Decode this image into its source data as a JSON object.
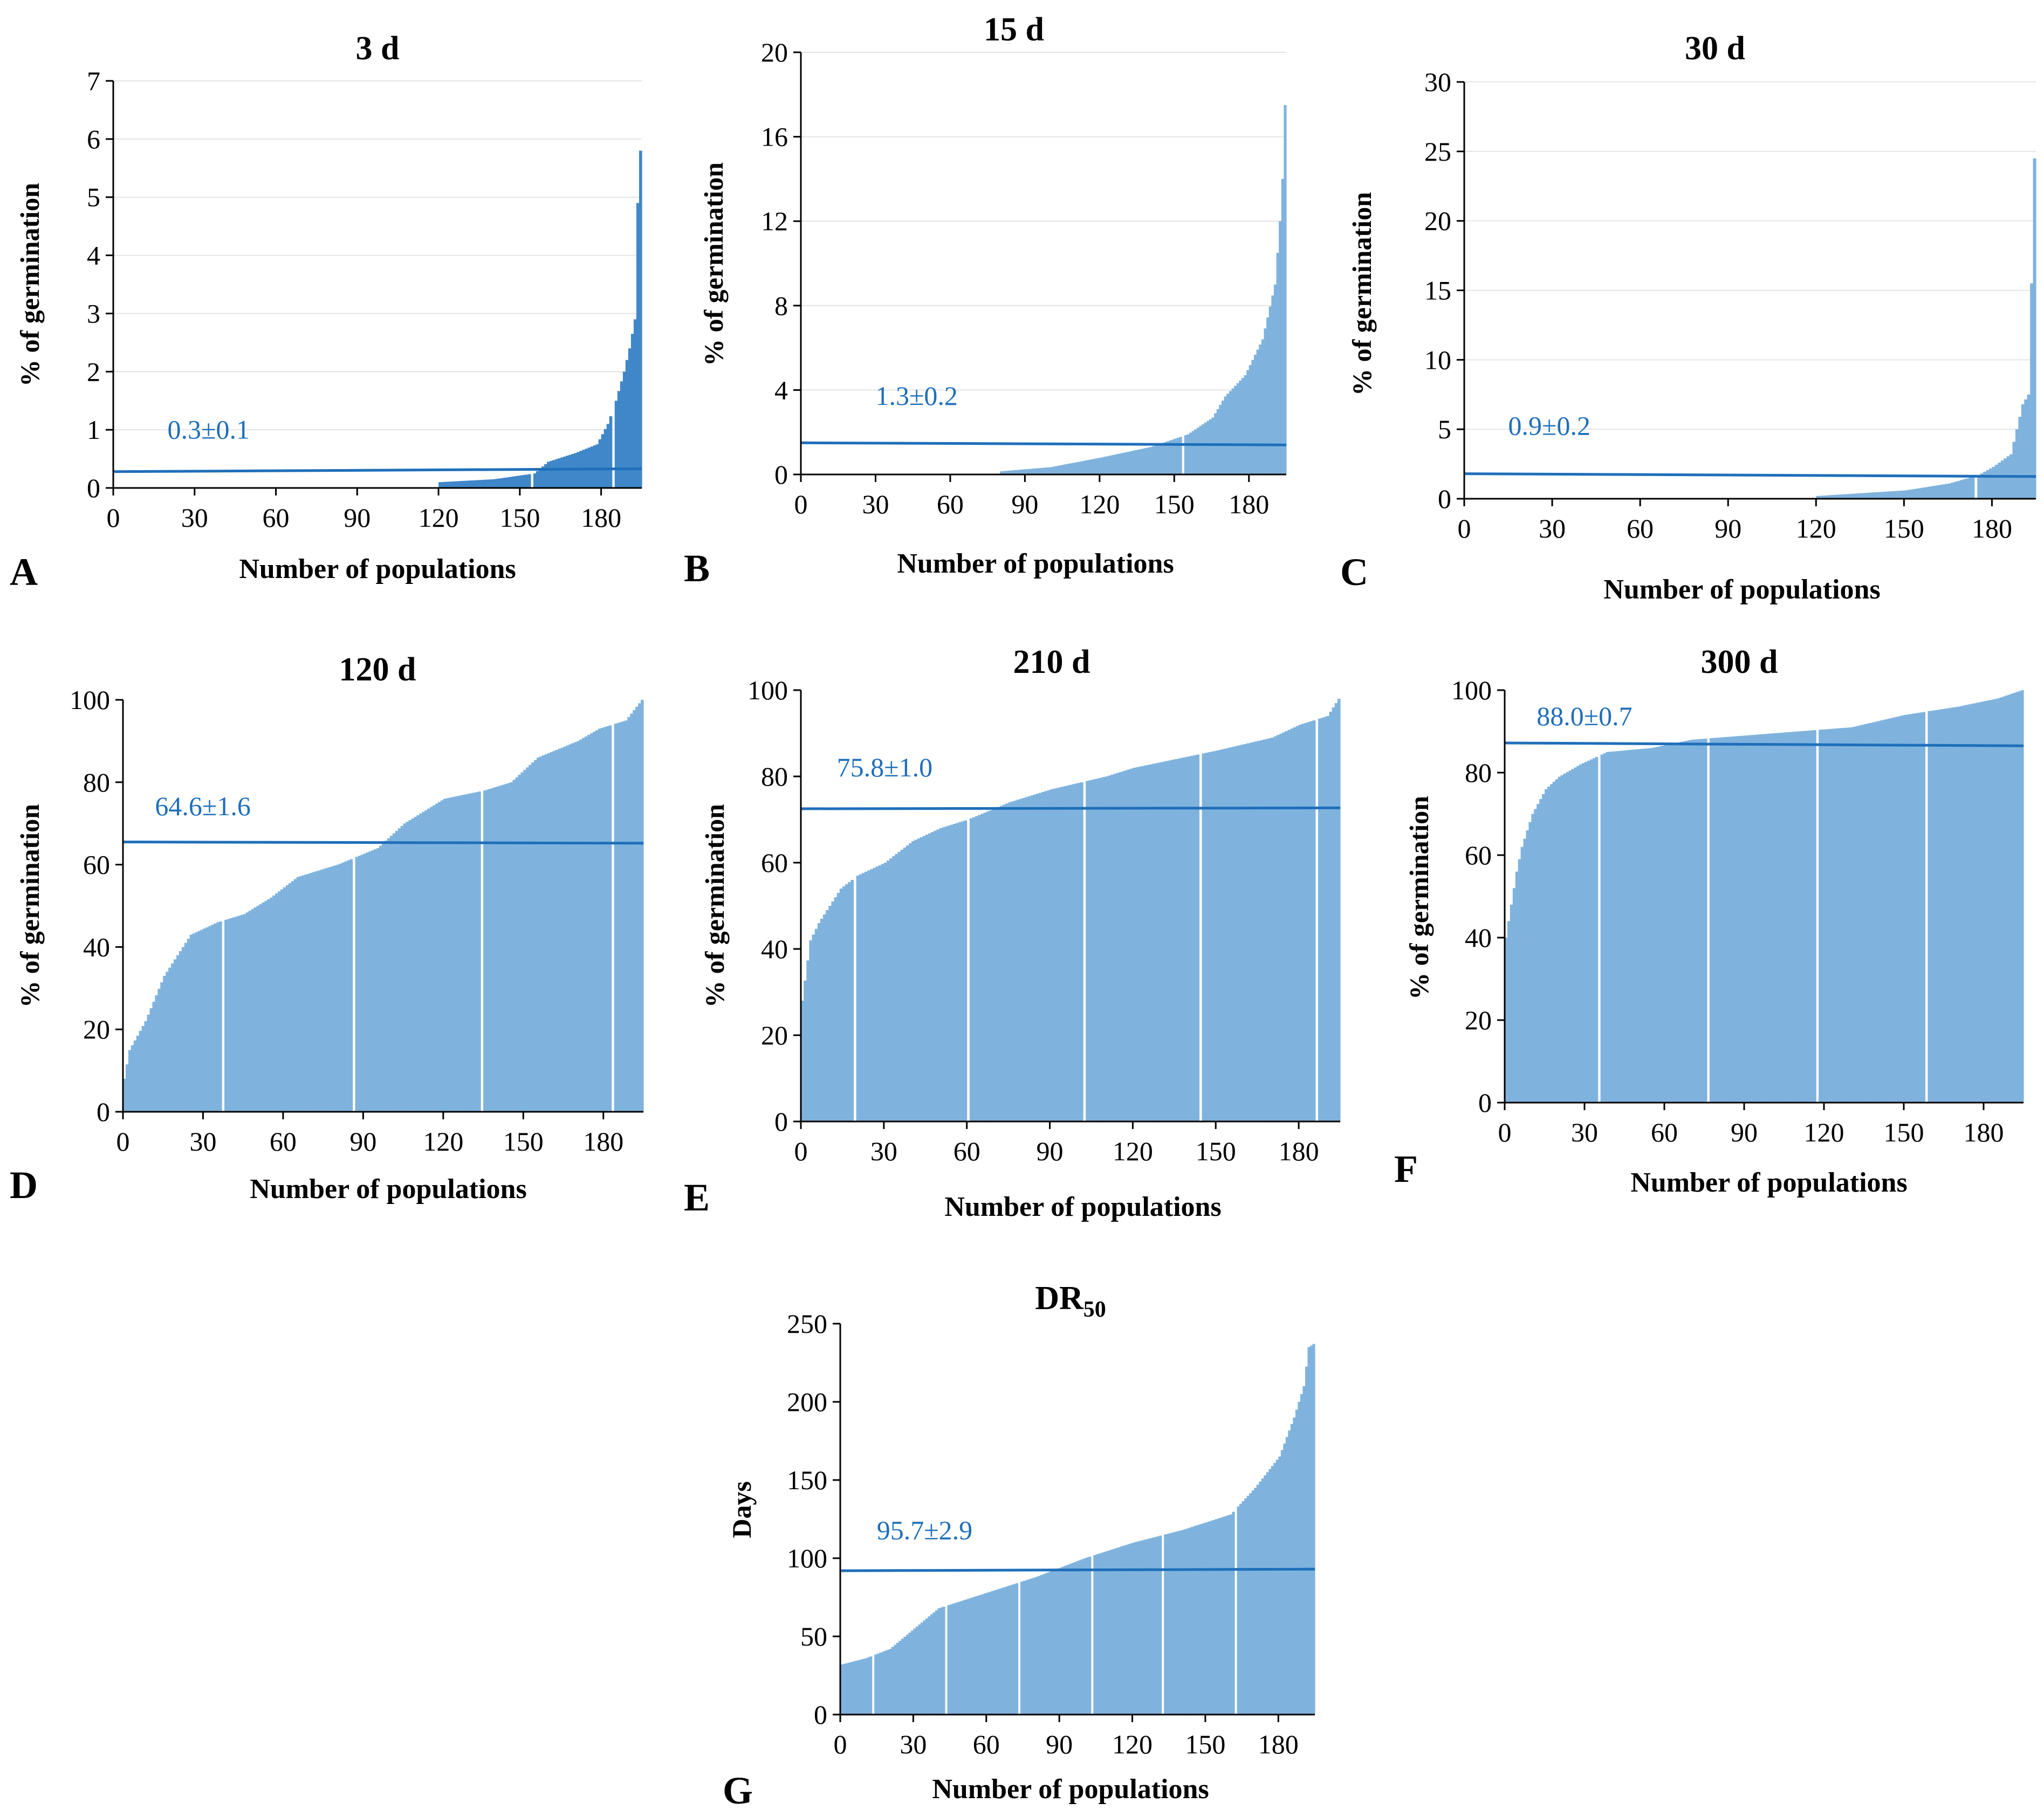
{
  "chart_data": [
    {
      "type": "bar",
      "panel": "A",
      "title": "3 d",
      "xlabel": "Number  of populations",
      "ylabel": "% of germination",
      "xticks": [
        "0",
        "30",
        "60",
        "90",
        "120",
        "150",
        "180"
      ],
      "ylim": [
        0,
        7
      ],
      "yticks": [
        "0",
        "1",
        "2",
        "3",
        "4",
        "5",
        "6",
        "7"
      ],
      "n": 195,
      "bar_color": "#3f87c8",
      "mean_line": [
        0.28,
        0.33
      ],
      "annotation": "0.3±0.1",
      "ann_at": [
        20,
        0.85
      ],
      "profile": [
        [
          0,
          0
        ],
        [
          119,
          0
        ],
        [
          120,
          0.1
        ],
        [
          140,
          0.15
        ],
        [
          155,
          0.25
        ],
        [
          160,
          0.45
        ],
        [
          170,
          0.6
        ],
        [
          178,
          0.75
        ],
        [
          182,
          1.1
        ],
        [
          185,
          1.5
        ],
        [
          188,
          2.0
        ],
        [
          190,
          2.4
        ],
        [
          192,
          2.9
        ],
        [
          193,
          4.9
        ],
        [
          194,
          5.8
        ]
      ],
      "grid": true,
      "gaps": [
        154,
        184
      ]
    },
    {
      "type": "bar",
      "panel": "B",
      "title": "15 d",
      "xlabel": "Number  of populations",
      "ylabel": "% of germination",
      "xticks": [
        "0",
        "30",
        "60",
        "90",
        "120",
        "150",
        "180"
      ],
      "ylim": [
        0,
        20
      ],
      "yticks": [
        "0",
        "4",
        "8",
        "12",
        "16",
        "20"
      ],
      "n": 195,
      "bar_color": "#7fb3de",
      "mean_line": [
        1.5,
        1.4
      ],
      "annotation": "1.3±0.2",
      "ann_at": [
        30,
        3.3
      ],
      "profile": [
        [
          0,
          0
        ],
        [
          79,
          0
        ],
        [
          80,
          0.15
        ],
        [
          100,
          0.35
        ],
        [
          120,
          0.8
        ],
        [
          140,
          1.3
        ],
        [
          155,
          1.9
        ],
        [
          165,
          2.7
        ],
        [
          170,
          3.7
        ],
        [
          178,
          4.7
        ],
        [
          185,
          6.4
        ],
        [
          190,
          9.0
        ],
        [
          192,
          12.0
        ],
        [
          193,
          14.0
        ],
        [
          194,
          17.5
        ]
      ],
      "grid": true,
      "gaps": [
        153
      ]
    },
    {
      "type": "bar",
      "panel": "C",
      "title": "30 d",
      "xlabel": "Number  of populations",
      "ylabel": "% of germination",
      "xticks": [
        "0",
        "30",
        "60",
        "90",
        "120",
        "150",
        "180"
      ],
      "ylim": [
        0,
        30
      ],
      "yticks": [
        "0",
        "5",
        "10",
        "15",
        "20",
        "25",
        "30"
      ],
      "n": 195,
      "bar_color": "#7fb3de",
      "mean_line": [
        1.8,
        1.6
      ],
      "annotation": "0.9±0.2",
      "ann_at": [
        15,
        4.6
      ],
      "profile": [
        [
          0,
          0
        ],
        [
          119,
          0
        ],
        [
          120,
          0.2
        ],
        [
          150,
          0.6
        ],
        [
          165,
          1.1
        ],
        [
          175,
          1.7
        ],
        [
          180,
          2.3
        ],
        [
          186,
          3.2
        ],
        [
          188,
          5.0
        ],
        [
          190,
          6.8
        ],
        [
          192,
          7.5
        ],
        [
          193,
          15.5
        ],
        [
          194,
          24.5
        ]
      ],
      "grid": true,
      "gaps": [
        174
      ]
    },
    {
      "type": "bar",
      "panel": "D",
      "title": "120 d",
      "xlabel": "Number  of populations",
      "ylabel": "% of germination",
      "xticks": [
        "0",
        "30",
        "60",
        "90",
        "120",
        "150",
        "180"
      ],
      "ylim": [
        0,
        100
      ],
      "yticks": [
        "0",
        "20",
        "40",
        "60",
        "80",
        "100"
      ],
      "n": 195,
      "bar_color": "#7fb3de",
      "mean_line": [
        65.5,
        65.2
      ],
      "annotation": "64.6±1.6",
      "ann_at": [
        12,
        72
      ],
      "profile": [
        [
          0,
          8
        ],
        [
          2,
          15
        ],
        [
          8,
          22
        ],
        [
          15,
          33
        ],
        [
          20,
          38
        ],
        [
          25,
          43
        ],
        [
          35,
          46
        ],
        [
          45,
          48
        ],
        [
          55,
          52
        ],
        [
          65,
          57
        ],
        [
          80,
          60
        ],
        [
          95,
          64
        ],
        [
          105,
          70
        ],
        [
          120,
          76
        ],
        [
          135,
          78
        ],
        [
          145,
          80
        ],
        [
          155,
          86
        ],
        [
          170,
          90
        ],
        [
          178,
          93
        ],
        [
          188,
          95
        ],
        [
          194,
          100
        ]
      ],
      "grid": false,
      "gaps": [
        37,
        86,
        134,
        183
      ]
    },
    {
      "type": "bar",
      "panel": "E",
      "title": "210 d",
      "xlabel": "Number  of populations",
      "ylabel": "% of germination",
      "xticks": [
        "0",
        "30",
        "60",
        "90",
        "120",
        "150",
        "180"
      ],
      "ylim": [
        0,
        100
      ],
      "yticks": [
        "0",
        "20",
        "40",
        "60",
        "80",
        "100"
      ],
      "n": 195,
      "bar_color": "#7fb3de",
      "mean_line": [
        72.5,
        72.7
      ],
      "annotation": "75.8±1.0",
      "ann_at": [
        13,
        80
      ],
      "profile": [
        [
          0,
          28
        ],
        [
          3,
          42
        ],
        [
          6,
          46
        ],
        [
          10,
          50
        ],
        [
          14,
          54
        ],
        [
          20,
          57
        ],
        [
          30,
          60
        ],
        [
          40,
          65
        ],
        [
          50,
          68
        ],
        [
          60,
          70
        ],
        [
          75,
          74
        ],
        [
          90,
          77
        ],
        [
          110,
          80
        ],
        [
          120,
          82
        ],
        [
          135,
          84
        ],
        [
          150,
          86
        ],
        [
          170,
          89
        ],
        [
          180,
          92
        ],
        [
          190,
          94
        ],
        [
          194,
          98
        ]
      ],
      "grid": false,
      "gaps": [
        19,
        60,
        102,
        144,
        186
      ]
    },
    {
      "type": "bar",
      "panel": "F",
      "title": "300 d",
      "xlabel": "Number  of populations",
      "ylabel": "% of germination",
      "xticks": [
        "0",
        "30",
        "60",
        "90",
        "120",
        "150",
        "180"
      ],
      "ylim": [
        0,
        100
      ],
      "yticks": [
        "0",
        "20",
        "40",
        "60",
        "80",
        "100"
      ],
      "n": 195,
      "bar_color": "#7fb3de",
      "mean_line": [
        87.2,
        86.5
      ],
      "annotation": "88.0±0.7",
      "ann_at": [
        12,
        91.5
      ],
      "profile": [
        [
          0,
          40
        ],
        [
          2,
          48
        ],
        [
          4,
          56
        ],
        [
          6,
          62
        ],
        [
          10,
          70
        ],
        [
          15,
          76
        ],
        [
          20,
          79
        ],
        [
          28,
          82
        ],
        [
          38,
          85
        ],
        [
          55,
          86
        ],
        [
          70,
          88
        ],
        [
          90,
          89
        ],
        [
          110,
          90
        ],
        [
          130,
          91
        ],
        [
          150,
          94
        ],
        [
          170,
          96
        ],
        [
          185,
          98
        ],
        [
          194,
          100
        ]
      ],
      "grid": false,
      "gaps": [
        35,
        76,
        117,
        158
      ]
    },
    {
      "type": "bar",
      "panel": "G",
      "title": "DR50",
      "xlabel": "Number  of populations",
      "ylabel": "Days",
      "xticks": [
        "0",
        "30",
        "60",
        "90",
        "120",
        "150",
        "180"
      ],
      "ylim": [
        0,
        250
      ],
      "yticks": [
        "0",
        "50",
        "100",
        "150",
        "200",
        "250"
      ],
      "n": 195,
      "bar_color": "#7fb3de",
      "mean_line": [
        92,
        93
      ],
      "annotation": "95.7±2.9",
      "ann_at": [
        15,
        112
      ],
      "profile": [
        [
          0,
          32
        ],
        [
          10,
          36
        ],
        [
          20,
          42
        ],
        [
          30,
          55
        ],
        [
          40,
          68
        ],
        [
          60,
          78
        ],
        [
          80,
          88
        ],
        [
          100,
          100
        ],
        [
          120,
          110
        ],
        [
          140,
          118
        ],
        [
          160,
          128
        ],
        [
          170,
          145
        ],
        [
          180,
          165
        ],
        [
          186,
          190
        ],
        [
          190,
          210
        ],
        [
          192,
          235
        ],
        [
          194,
          237
        ]
      ],
      "grid": false,
      "gaps": [
        13,
        43,
        73,
        103,
        132,
        162
      ]
    }
  ]
}
